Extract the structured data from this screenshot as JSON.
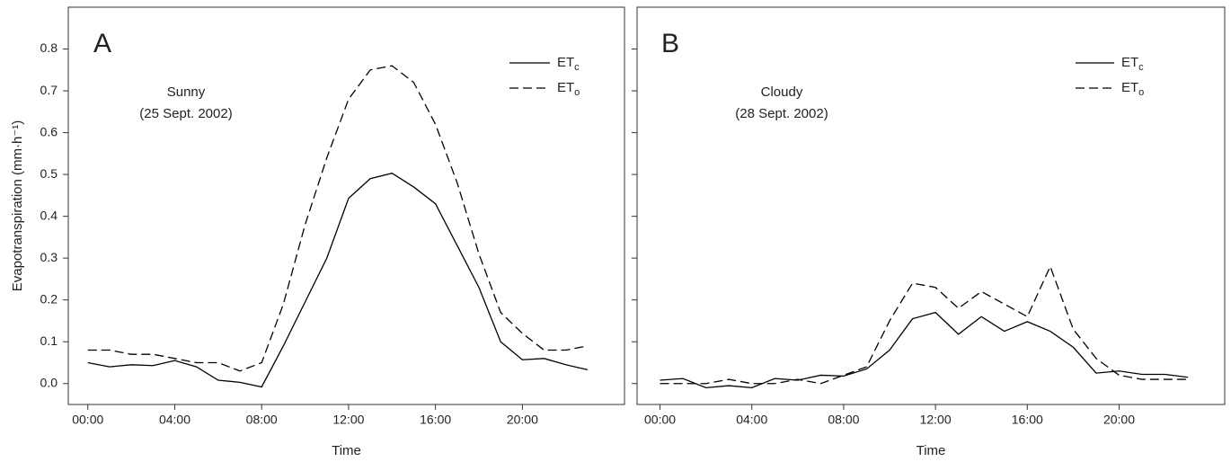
{
  "chart_data": [
    {
      "type": "line",
      "panel_label": "A",
      "annotation": [
        "Sunny",
        "(25 Sept. 2002)"
      ],
      "xlabel": "Time",
      "ylabel": "Evapotranspiration (mm·h⁻¹)",
      "x": [
        0,
        1,
        2,
        3,
        4,
        5,
        6,
        7,
        8,
        9,
        10,
        11,
        12,
        13,
        14,
        15,
        16,
        17,
        18,
        19,
        20,
        21,
        22,
        23
      ],
      "series": [
        {
          "name": "ETc",
          "color": "#000000",
          "line_style": "solid",
          "values": [
            0.05,
            0.04,
            0.045,
            0.043,
            0.055,
            0.04,
            0.008,
            0.003,
            -0.008,
            0.09,
            0.195,
            0.3,
            0.443,
            0.49,
            0.503,
            0.47,
            0.43,
            0.33,
            0.23,
            0.1,
            0.057,
            0.06,
            0.045,
            0.033
          ]
        },
        {
          "name": "ETo",
          "color": "#000000",
          "line_style": "dashed",
          "values": [
            0.08,
            0.08,
            0.07,
            0.07,
            0.06,
            0.05,
            0.05,
            0.03,
            0.05,
            0.19,
            0.38,
            0.54,
            0.68,
            0.75,
            0.76,
            0.72,
            0.62,
            0.48,
            0.31,
            0.17,
            0.12,
            0.08,
            0.08,
            0.09
          ]
        }
      ],
      "xlim": [
        -0.9,
        24.7
      ],
      "xticks": [
        {
          "value": 0,
          "label": "00:00"
        },
        {
          "value": 4,
          "label": "04:00"
        },
        {
          "value": 8,
          "label": "08:00"
        },
        {
          "value": 12,
          "label": "12:00"
        },
        {
          "value": 16,
          "label": "16:00"
        },
        {
          "value": 20,
          "label": "20:00"
        }
      ],
      "ylim": [
        -0.05,
        0.9
      ],
      "yticks": [
        {
          "value": 0,
          "label": "0.0"
        },
        0.1,
        0.2,
        0.3,
        0.4,
        0.5,
        0.6,
        0.7,
        0.8
      ],
      "ytick_labels": true,
      "legend": "upper right",
      "grid": false
    },
    {
      "type": "line",
      "panel_label": "B",
      "annotation": [
        "Cloudy",
        "(28 Sept. 2002)"
      ],
      "xlabel": "Time",
      "x": [
        0,
        1,
        2,
        3,
        4,
        5,
        6,
        7,
        8,
        9,
        10,
        11,
        12,
        13,
        14,
        15,
        16,
        17,
        18,
        19,
        20,
        21,
        22,
        23
      ],
      "series": [
        {
          "name": "ETc",
          "color": "#000000",
          "line_style": "solid",
          "values": [
            0.008,
            0.012,
            -0.01,
            -0.005,
            -0.01,
            0.012,
            0.008,
            0.02,
            0.018,
            0.035,
            0.08,
            0.155,
            0.17,
            0.118,
            0.16,
            0.125,
            0.148,
            0.125,
            0.087,
            0.025,
            0.03,
            0.022,
            0.022,
            0.015
          ]
        },
        {
          "name": "ETo",
          "color": "#000000",
          "line_style": "dashed",
          "values": [
            0,
            0,
            0,
            0.01,
            0,
            0,
            0.01,
            0,
            0.02,
            0.04,
            0.15,
            0.24,
            0.23,
            0.18,
            0.22,
            0.19,
            0.16,
            0.28,
            0.13,
            0.06,
            0.02,
            0.01,
            0.01,
            0.01
          ]
        }
      ],
      "xlim": [
        -1.0,
        24.6
      ],
      "xticks": [
        {
          "value": 0,
          "label": "00:00"
        },
        {
          "value": 4,
          "label": "04:00"
        },
        {
          "value": 8,
          "label": "08:00"
        },
        {
          "value": 12,
          "label": "12:00"
        },
        {
          "value": 16,
          "label": "16:00"
        },
        {
          "value": 20,
          "label": "20:00"
        }
      ],
      "ylim": [
        -0.05,
        0.9
      ],
      "yticks": [
        0,
        0.1,
        0.2,
        0.3,
        0.4,
        0.5,
        0.6,
        0.7,
        0.8
      ],
      "ytick_labels": false,
      "legend": "upper right",
      "grid": false
    }
  ]
}
